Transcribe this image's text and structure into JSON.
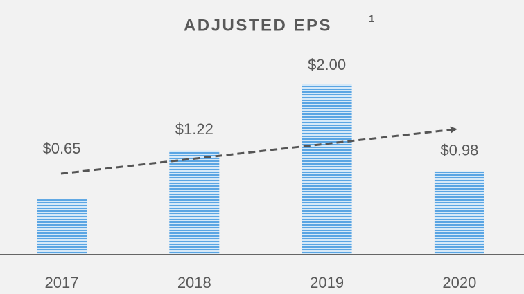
{
  "chart_data": {
    "type": "bar",
    "title": "ADJUSTED EPS",
    "title_superscript": "1",
    "categories": [
      "2017",
      "2018",
      "2019",
      "2020"
    ],
    "values": [
      0.65,
      1.22,
      2.0,
      0.98
    ],
    "value_labels": [
      "$0.65",
      "$1.22",
      "$2.00",
      "$0.98"
    ],
    "color": "#5aa5e3"
  }
}
